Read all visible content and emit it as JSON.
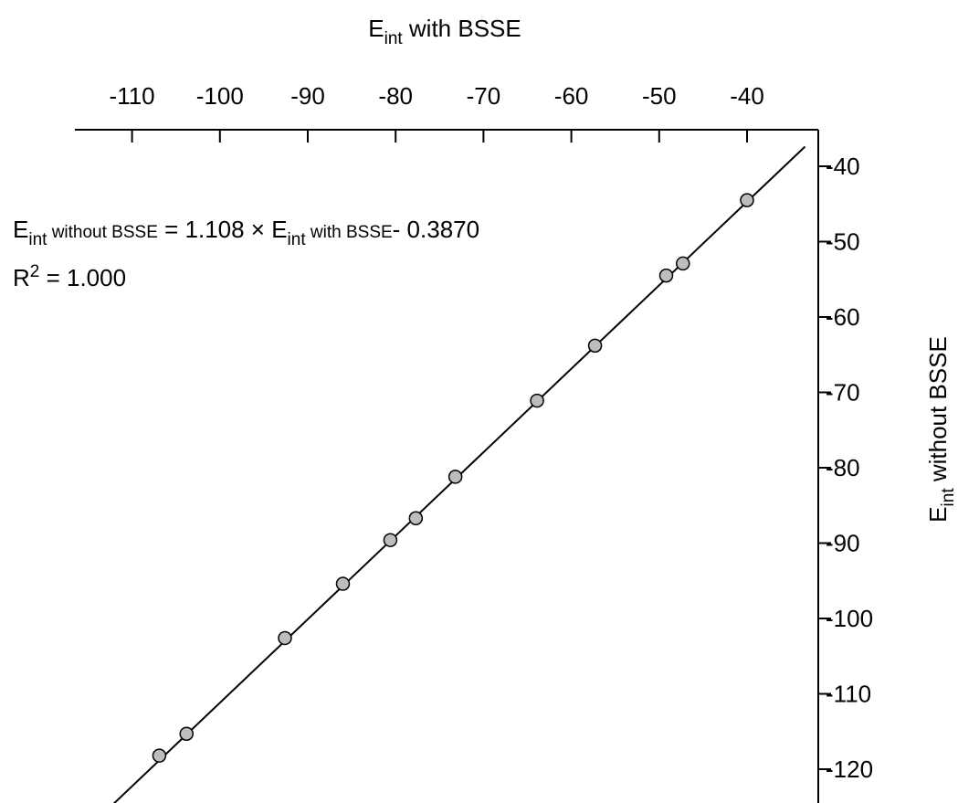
{
  "chart_data": {
    "type": "scatter",
    "x_axis": {
      "title_main": "E",
      "title_sub": "int",
      "title_rest": " with BSSE",
      "position": "top",
      "range": [
        -115,
        -33
      ],
      "ticks": [
        -110,
        -100,
        -90,
        -80,
        -70,
        -60,
        -50,
        -40
      ],
      "tick_labels": [
        "-110",
        "-100",
        "-90",
        "-80",
        "-70",
        "-60",
        "-50",
        "-40"
      ]
    },
    "y_axis": {
      "title_main": "E",
      "title_sub": "int",
      "title_rest": " without BSSE",
      "position": "right",
      "range": [
        -124,
        -35
      ],
      "ticks": [
        -40,
        -50,
        -60,
        -70,
        -80,
        -90,
        -100,
        -110,
        -120
      ],
      "tick_labels": [
        "-40",
        "-50",
        "-60",
        "-70",
        "-80",
        "-90",
        "-100",
        "-110",
        "-120"
      ]
    },
    "points": [
      {
        "x": -106.9,
        "y": -118.2
      },
      {
        "x": -103.8,
        "y": -115.3
      },
      {
        "x": -92.6,
        "y": -102.6
      },
      {
        "x": -86.0,
        "y": -95.4
      },
      {
        "x": -80.6,
        "y": -89.6
      },
      {
        "x": -77.7,
        "y": -86.7
      },
      {
        "x": -73.2,
        "y": -81.2
      },
      {
        "x": -63.9,
        "y": -71.1
      },
      {
        "x": -57.3,
        "y": -63.8
      },
      {
        "x": -49.2,
        "y": -54.5
      },
      {
        "x": -47.3,
        "y": -52.9
      },
      {
        "x": -40.0,
        "y": -44.5
      }
    ],
    "fit": {
      "slope": 1.108,
      "intercept": -0.387
    },
    "equation": {
      "lhs_main": "E",
      "lhs_sub": "int",
      "lhs_rest": " without BSSE",
      "mid": " = 1.108 × E",
      "rhs_sub": "int",
      "rhs_rest": " with BSSE",
      "tail": "- 0.3870"
    },
    "r2": {
      "main": "R",
      "sup": "2",
      "rest": " = 1.000"
    },
    "grid": false,
    "legend": false,
    "colors": {
      "marker_fill": "#bdbdbd",
      "marker_stroke": "#000000",
      "line": "#000000"
    }
  }
}
